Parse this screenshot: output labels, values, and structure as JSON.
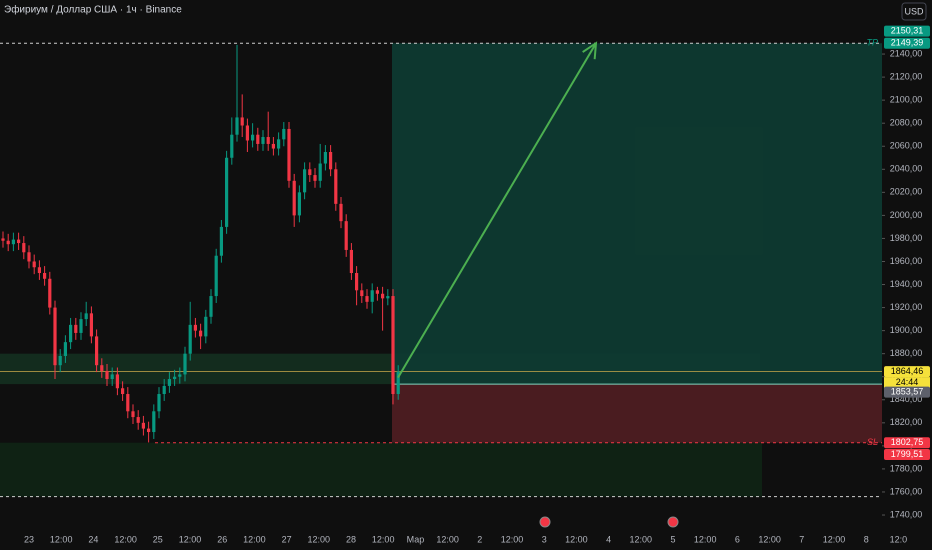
{
  "title": "Эфириум / Доллар США · 1ч · Binance",
  "currency_button": "USD",
  "chart_data": {
    "type": "candlestick",
    "ylim": [
      1727,
      2186.9
    ],
    "yticks": [
      {
        "value": 1740,
        "label": "1740,00"
      },
      {
        "value": 1760,
        "label": "1760,00"
      },
      {
        "value": 1780,
        "label": "1780,00"
      },
      {
        "value": 1800,
        "label": "1800,00"
      },
      {
        "value": 1820,
        "label": "1820,00"
      },
      {
        "value": 1840,
        "label": "1840,00"
      },
      {
        "value": 1860,
        "label": "1860,00"
      },
      {
        "value": 1880,
        "label": "1880,00"
      },
      {
        "value": 1900,
        "label": "1900,00"
      },
      {
        "value": 1920,
        "label": "1920,00"
      },
      {
        "value": 1940,
        "label": "1940,00"
      },
      {
        "value": 1960,
        "label": "1960,00"
      },
      {
        "value": 1980,
        "label": "1980,00"
      },
      {
        "value": 2000,
        "label": "2000,00"
      },
      {
        "value": 2020,
        "label": "2020,00"
      },
      {
        "value": 2040,
        "label": "2040,00"
      },
      {
        "value": 2060,
        "label": "2060,00"
      },
      {
        "value": 2080,
        "label": "2080,00"
      },
      {
        "value": 2100,
        "label": "2100,00"
      },
      {
        "value": 2120,
        "label": "2120,00"
      },
      {
        "value": 2140,
        "label": "2140,00"
      }
    ],
    "x_labels": [
      "23",
      "12:00",
      "24",
      "12:00",
      "25",
      "12:00",
      "26",
      "12:00",
      "27",
      "12:00",
      "28",
      "12:00",
      "Мар",
      "12:00",
      "2",
      "12:00",
      "3",
      "12:00",
      "4",
      "12:00",
      "5",
      "12:00",
      "6",
      "12:00",
      "7",
      "12:00",
      "8",
      "12:0"
    ],
    "up_color": "#089981",
    "down_color": "#f23645",
    "open": [
      1980,
      1978,
      1975,
      1979,
      1976,
      1968,
      1960,
      1955,
      1950,
      1945,
      1920,
      1870,
      1878,
      1890,
      1905,
      1898,
      1910,
      1915,
      1895,
      1870,
      1865,
      1858,
      1862,
      1850,
      1845,
      1830,
      1825,
      1820,
      1815,
      1812,
      1830,
      1845,
      1852,
      1858,
      1860,
      1862,
      1880,
      1905,
      1900,
      1895,
      1912,
      1930,
      1965,
      1990,
      2050,
      2070,
      2085,
      2078,
      2065,
      2070,
      2062,
      2068,
      2062,
      2058,
      2066,
      2075,
      2030,
      2000,
      2020,
      2040,
      2035,
      2030,
      2045,
      2055,
      2040,
      2010,
      1995,
      1970,
      1950,
      1935,
      1930,
      1925,
      1935,
      1932,
      1928,
      1930,
      1845
    ],
    "high": [
      1986,
      1984,
      1985,
      1985,
      1982,
      1974,
      1966,
      1961,
      1956,
      1951,
      1926,
      1884,
      1896,
      1911,
      1911,
      1916,
      1925,
      1921,
      1901,
      1876,
      1871,
      1868,
      1868,
      1856,
      1851,
      1836,
      1831,
      1826,
      1821,
      1836,
      1851,
      1858,
      1864,
      1866,
      1868,
      1886,
      1925,
      1911,
      1906,
      1918,
      1936,
      1971,
      1996,
      2056,
      2085,
      2148,
      2105,
      2084,
      2080,
      2076,
      2074,
      2090,
      2068,
      2072,
      2081,
      2081,
      2036,
      2026,
      2046,
      2046,
      2041,
      2062,
      2061,
      2061,
      2046,
      2016,
      2001,
      1976,
      1956,
      1941,
      1936,
      1941,
      1938,
      1938,
      1936,
      1936,
      1870
    ],
    "low": [
      1972,
      1969,
      1969,
      1970,
      1962,
      1954,
      1949,
      1944,
      1939,
      1914,
      1858,
      1864,
      1872,
      1884,
      1892,
      1892,
      1904,
      1889,
      1864,
      1859,
      1852,
      1852,
      1844,
      1839,
      1824,
      1819,
      1814,
      1809,
      1803,
      1806,
      1824,
      1839,
      1846,
      1852,
      1854,
      1856,
      1874,
      1894,
      1884,
      1889,
      1906,
      1924,
      1959,
      1984,
      2044,
      2064,
      2068,
      2055,
      2059,
      2056,
      2056,
      2056,
      2052,
      2052,
      2060,
      2024,
      1990,
      1994,
      2014,
      2029,
      2024,
      2024,
      2039,
      2034,
      2004,
      1989,
      1964,
      1944,
      1922,
      1924,
      1919,
      1915,
      1926,
      1900,
      1922,
      1836,
      1840
    ],
    "close": [
      1978,
      1975,
      1979,
      1976,
      1968,
      1960,
      1955,
      1950,
      1945,
      1920,
      1870,
      1878,
      1890,
      1905,
      1898,
      1910,
      1915,
      1895,
      1870,
      1865,
      1858,
      1862,
      1850,
      1845,
      1830,
      1825,
      1820,
      1815,
      1812,
      1830,
      1845,
      1852,
      1858,
      1860,
      1862,
      1880,
      1905,
      1900,
      1895,
      1912,
      1930,
      1965,
      1990,
      2050,
      2070,
      2085,
      2078,
      2065,
      2070,
      2062,
      2068,
      2062,
      2058,
      2066,
      2075,
      2030,
      2000,
      2020,
      2040,
      2035,
      2030,
      2045,
      2055,
      2040,
      2010,
      1995,
      1970,
      1950,
      1935,
      1930,
      1925,
      1935,
      1932,
      1928,
      1930,
      1845,
      1864.46
    ],
    "current_price": {
      "value": 1864.46,
      "label": "1864,46",
      "countdown": "24:44"
    },
    "take_profit": {
      "value": 2149.39,
      "label": "2149,39",
      "tag": "TP"
    },
    "target_high": {
      "value": 2150.31,
      "label": "2150,31"
    },
    "entry": {
      "value": 1853.57,
      "label": "1853,57"
    },
    "stop_loss": {
      "value": 1802.75,
      "label": "1802,75",
      "tag": "SL"
    },
    "stop_low": {
      "value": 1799.51,
      "label": "1799,51"
    },
    "zones": [
      {
        "from": 1853.57,
        "to": 1880
      },
      {
        "from": 1756,
        "to": 1802.75
      }
    ],
    "grid": false
  }
}
